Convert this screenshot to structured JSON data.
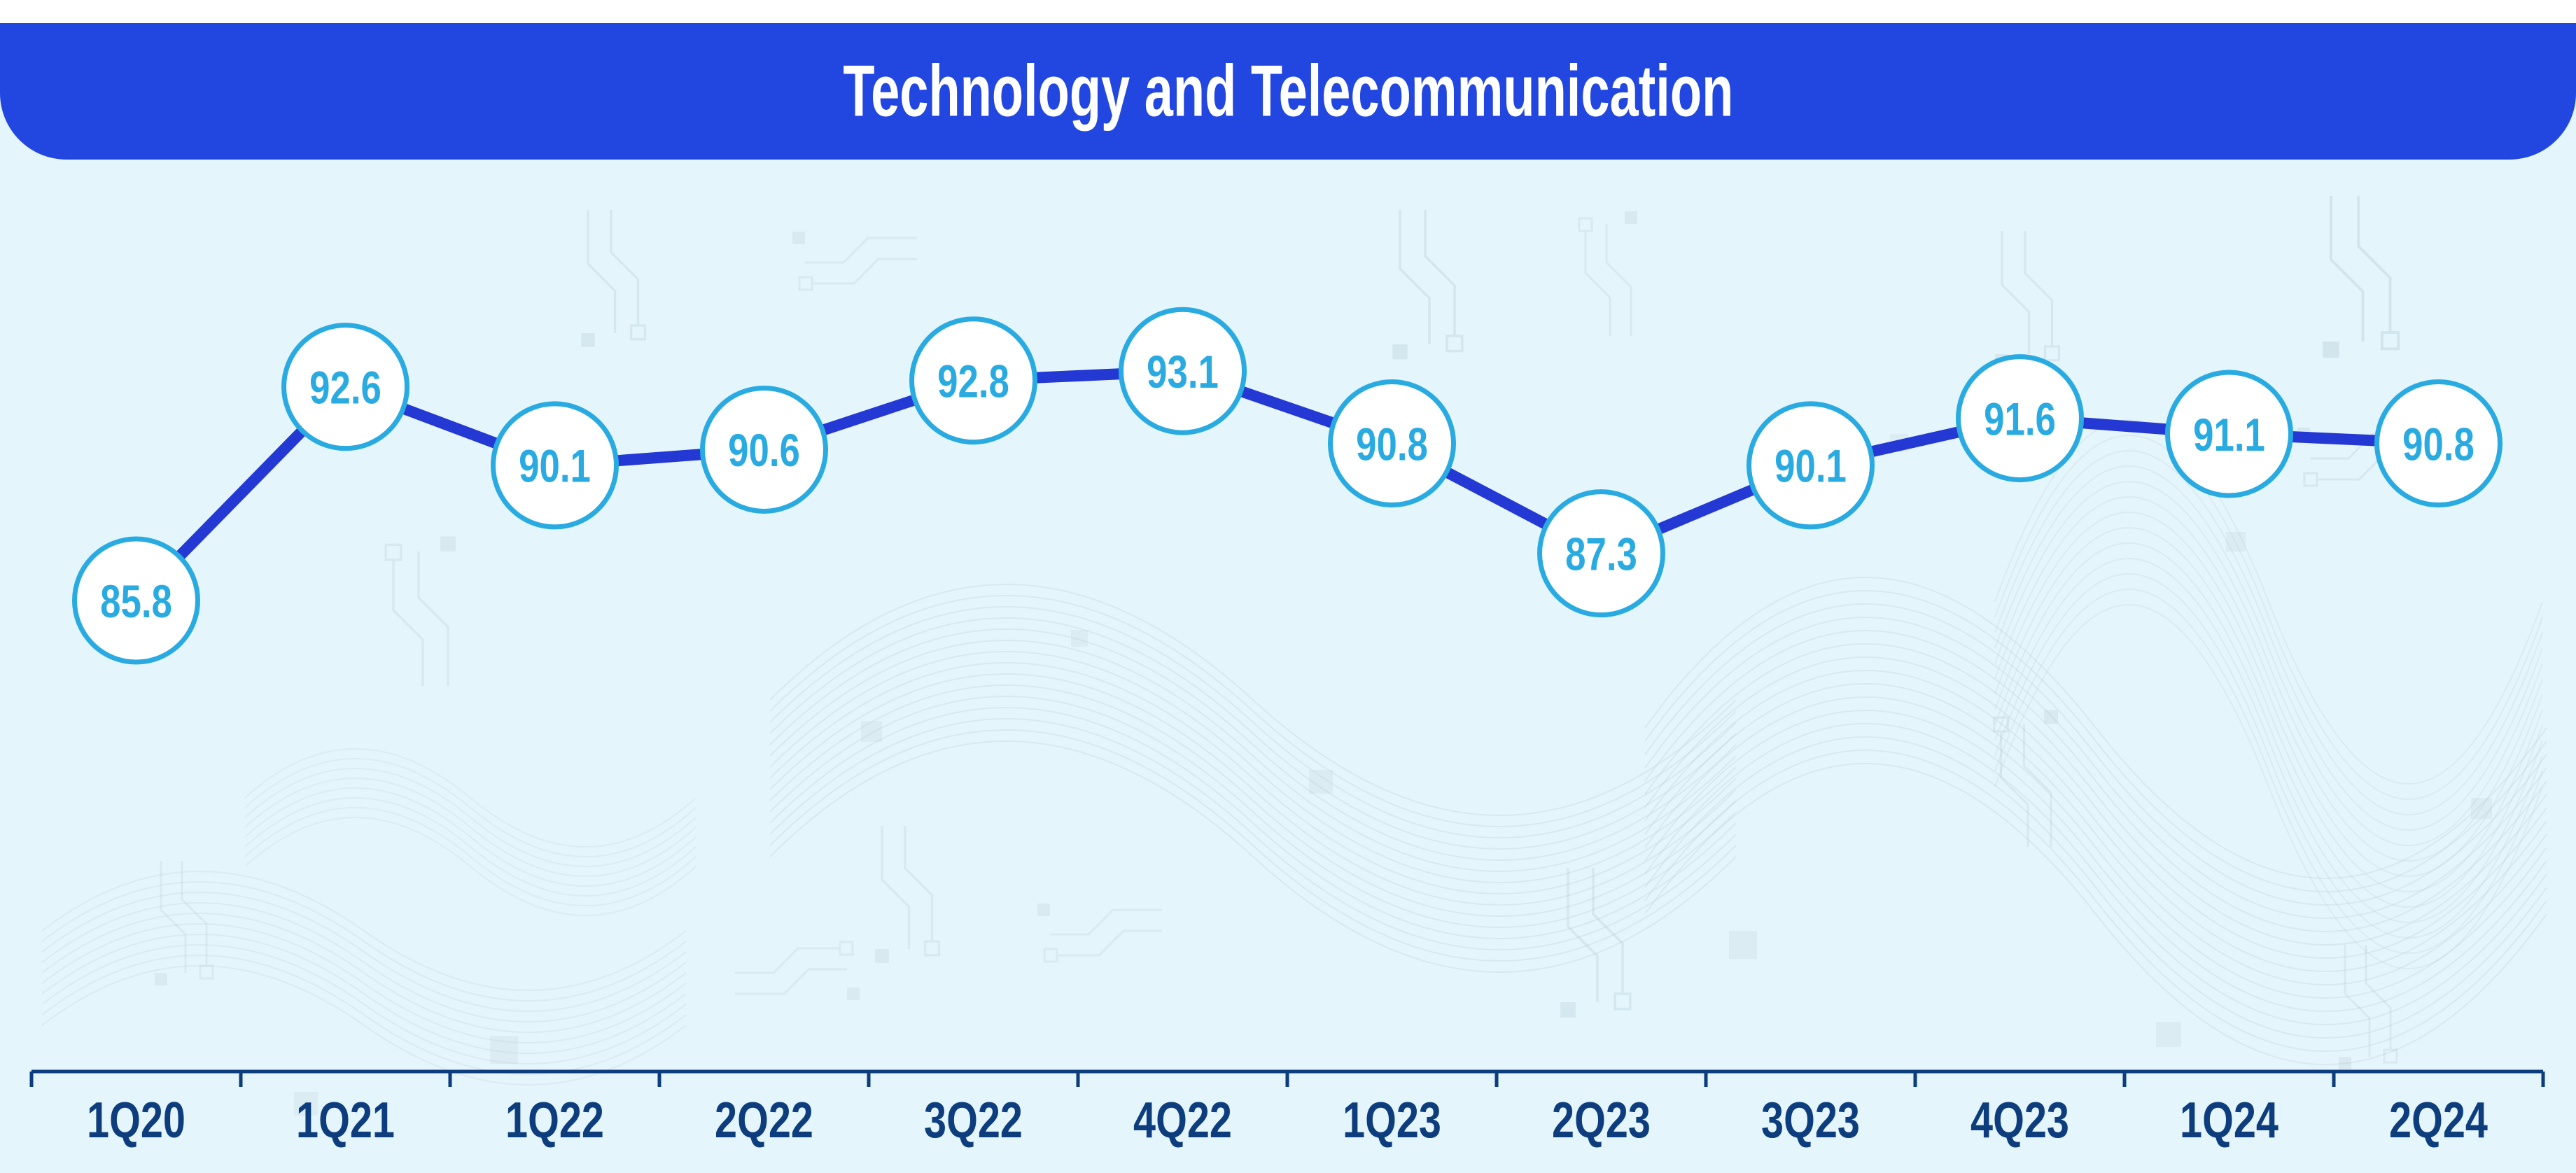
{
  "header": {
    "title": "Technology and Telecommunication"
  },
  "chart_data": {
    "type": "line",
    "title": "Technology and Telecommunication",
    "categories": [
      "1Q20",
      "1Q21",
      "1Q22",
      "2Q22",
      "3Q22",
      "4Q22",
      "1Q23",
      "2Q23",
      "3Q23",
      "4Q23",
      "1Q24",
      "2Q24"
    ],
    "values": [
      85.8,
      92.6,
      90.1,
      90.6,
      92.8,
      93.1,
      90.8,
      87.3,
      90.1,
      91.6,
      91.1,
      90.8
    ],
    "value_labels": [
      "85.8",
      "92.6",
      "90.1",
      "90.6",
      "92.8",
      "93.1",
      "90.8",
      "87.3",
      "90.1",
      "91.6",
      "91.1",
      "90.8"
    ],
    "xlabel": "",
    "ylabel": "",
    "grid": false,
    "legend": "none",
    "ylim_est": [
      84,
      95
    ],
    "colors": {
      "banner_blue": "#2247e0",
      "line_blue": "#2438d4",
      "marker_stroke_cyan": "#29abe2",
      "marker_fill": "#ffffff",
      "value_text_cyan": "#29abe2",
      "axis_navy": "#0d3d7d",
      "background_light": "#e4f5fb",
      "top_strip_white": "#ffffff"
    }
  }
}
